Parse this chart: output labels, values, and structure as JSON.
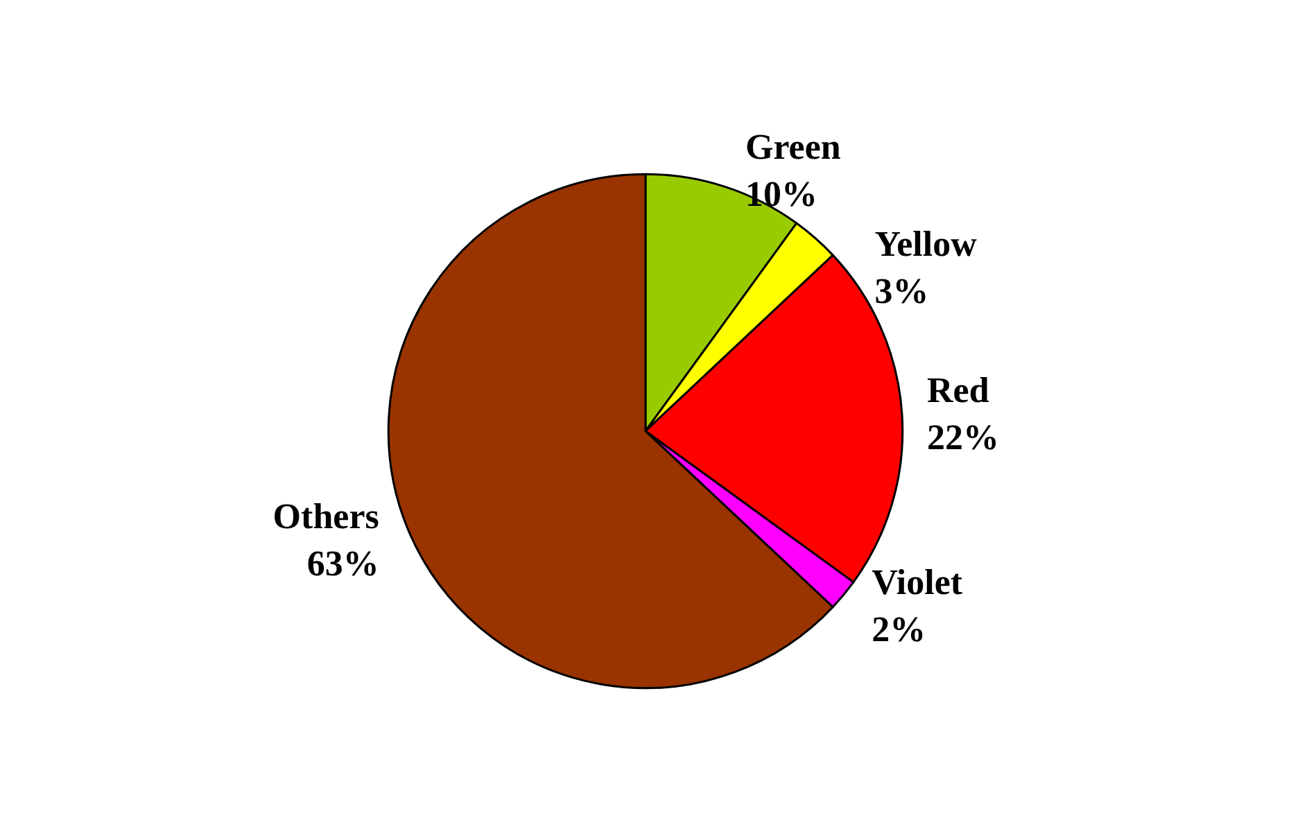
{
  "chart_data": {
    "type": "pie",
    "categories": [
      "Green",
      "Yellow",
      "Red",
      "Violet",
      "Others"
    ],
    "values": [
      10,
      3,
      22,
      2,
      63
    ],
    "value_labels": [
      "10%",
      "3%",
      "22%",
      "2%",
      "63%"
    ],
    "colors": [
      "#99cc00",
      "#ffff00",
      "#ff0000",
      "#ff00ff",
      "#993300"
    ],
    "legend": false
  }
}
